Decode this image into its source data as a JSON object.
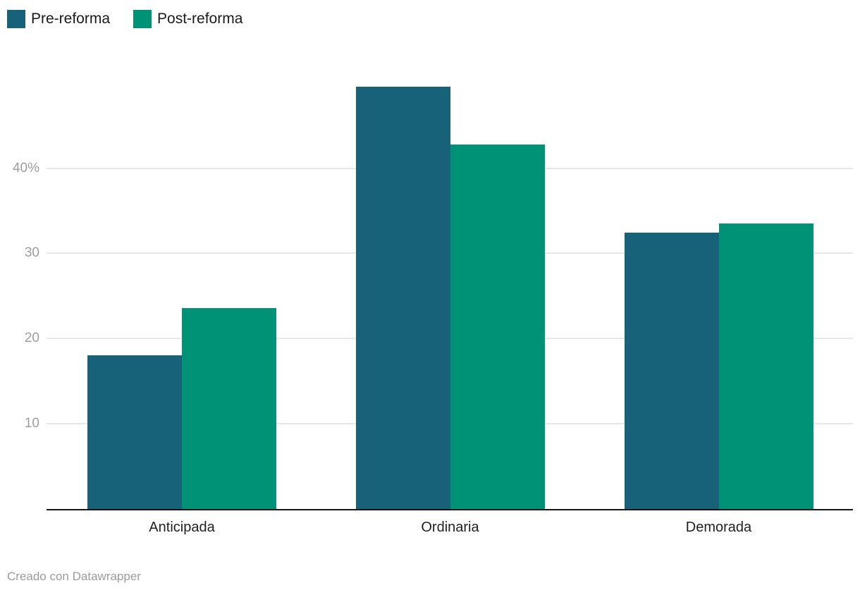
{
  "legend": {
    "items": [
      {
        "label": "Pre-reforma",
        "color": "#176179"
      },
      {
        "label": "Post-reforma",
        "color": "#009277"
      }
    ]
  },
  "chart_data": {
    "type": "bar",
    "title": "",
    "xlabel": "",
    "ylabel": "",
    "unit": "%",
    "categories": [
      "Anticipada",
      "Ordinaria",
      "Demorada"
    ],
    "series": [
      {
        "name": "Pre-reforma",
        "color": "#176179",
        "values": [
          18.0,
          49.6,
          32.4
        ]
      },
      {
        "name": "Post-reforma",
        "color": "#009277",
        "values": [
          23.6,
          42.8,
          33.5
        ]
      }
    ],
    "y_ticks": [
      {
        "value": 10,
        "label": "10"
      },
      {
        "value": 20,
        "label": "20"
      },
      {
        "value": 30,
        "label": "30"
      },
      {
        "value": 40,
        "label": "40%"
      }
    ],
    "ylim": [
      0,
      52.3
    ],
    "grid": "horizontal",
    "legend_position": "top-left"
  },
  "footer": {
    "credit": "Creado con Datawrapper"
  },
  "colors": {
    "background": "#ffffff",
    "axis_line": "#161616",
    "gridline": "#e7e7e7",
    "tick_label": "#9d9d9d",
    "category_label": "#1f1f1f",
    "legend_label": "#1a1a1a",
    "footer_text": "#9b9b9b"
  }
}
